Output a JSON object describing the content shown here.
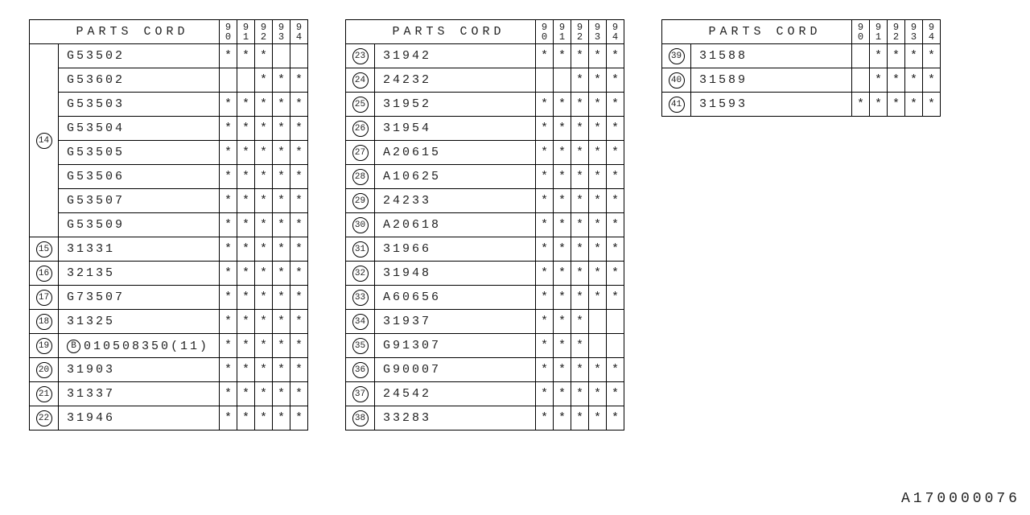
{
  "title": "PARTS CORD",
  "years": [
    "90",
    "91",
    "92",
    "93",
    "94"
  ],
  "mark_symbol": "*",
  "footer_code": "A170000076",
  "tables": [
    {
      "groups": [
        {
          "num": "14",
          "rows": [
            {
              "part": "G53502",
              "marks": [
                true,
                true,
                true,
                false,
                false
              ]
            },
            {
              "part": "G53602",
              "marks": [
                false,
                false,
                true,
                true,
                true
              ]
            },
            {
              "part": "G53503",
              "marks": [
                true,
                true,
                true,
                true,
                true
              ]
            },
            {
              "part": "G53504",
              "marks": [
                true,
                true,
                true,
                true,
                true
              ]
            },
            {
              "part": "G53505",
              "marks": [
                true,
                true,
                true,
                true,
                true
              ]
            },
            {
              "part": "G53506",
              "marks": [
                true,
                true,
                true,
                true,
                true
              ]
            },
            {
              "part": "G53507",
              "marks": [
                true,
                true,
                true,
                true,
                true
              ]
            },
            {
              "part": "G53509",
              "marks": [
                true,
                true,
                true,
                true,
                true
              ]
            }
          ]
        },
        {
          "num": "15",
          "rows": [
            {
              "part": "31331",
              "marks": [
                true,
                true,
                true,
                true,
                true
              ]
            }
          ]
        },
        {
          "num": "16",
          "rows": [
            {
              "part": "32135",
              "marks": [
                true,
                true,
                true,
                true,
                true
              ]
            }
          ]
        },
        {
          "num": "17",
          "rows": [
            {
              "part": "G73507",
              "marks": [
                true,
                true,
                true,
                true,
                true
              ]
            }
          ]
        },
        {
          "num": "18",
          "rows": [
            {
              "part": "31325",
              "marks": [
                true,
                true,
                true,
                true,
                true
              ]
            }
          ]
        },
        {
          "num": "19",
          "rows": [
            {
              "badge": "B",
              "part": "010508350(11)",
              "marks": [
                true,
                true,
                true,
                true,
                true
              ]
            }
          ]
        },
        {
          "num": "20",
          "rows": [
            {
              "part": "31903",
              "marks": [
                true,
                true,
                true,
                true,
                true
              ]
            }
          ]
        },
        {
          "num": "21",
          "rows": [
            {
              "part": "31337",
              "marks": [
                true,
                true,
                true,
                true,
                true
              ]
            }
          ]
        },
        {
          "num": "22",
          "rows": [
            {
              "part": "31946",
              "marks": [
                true,
                true,
                true,
                true,
                true
              ]
            }
          ]
        }
      ]
    },
    {
      "groups": [
        {
          "num": "23",
          "rows": [
            {
              "part": "31942",
              "marks": [
                true,
                true,
                true,
                true,
                true
              ]
            }
          ]
        },
        {
          "num": "24",
          "rows": [
            {
              "part": "24232",
              "marks": [
                false,
                false,
                true,
                true,
                true
              ]
            }
          ]
        },
        {
          "num": "25",
          "rows": [
            {
              "part": "31952",
              "marks": [
                true,
                true,
                true,
                true,
                true
              ]
            }
          ]
        },
        {
          "num": "26",
          "rows": [
            {
              "part": "31954",
              "marks": [
                true,
                true,
                true,
                true,
                true
              ]
            }
          ]
        },
        {
          "num": "27",
          "rows": [
            {
              "part": "A20615",
              "marks": [
                true,
                true,
                true,
                true,
                true
              ]
            }
          ]
        },
        {
          "num": "28",
          "rows": [
            {
              "part": "A10625",
              "marks": [
                true,
                true,
                true,
                true,
                true
              ]
            }
          ]
        },
        {
          "num": "29",
          "rows": [
            {
              "part": "24233",
              "marks": [
                true,
                true,
                true,
                true,
                true
              ]
            }
          ]
        },
        {
          "num": "30",
          "rows": [
            {
              "part": "A20618",
              "marks": [
                true,
                true,
                true,
                true,
                true
              ]
            }
          ]
        },
        {
          "num": "31",
          "rows": [
            {
              "part": "31966",
              "marks": [
                true,
                true,
                true,
                true,
                true
              ]
            }
          ]
        },
        {
          "num": "32",
          "rows": [
            {
              "part": "31948",
              "marks": [
                true,
                true,
                true,
                true,
                true
              ]
            }
          ]
        },
        {
          "num": "33",
          "rows": [
            {
              "part": "A60656",
              "marks": [
                true,
                true,
                true,
                true,
                true
              ]
            }
          ]
        },
        {
          "num": "34",
          "rows": [
            {
              "part": "31937",
              "marks": [
                true,
                true,
                true,
                false,
                false
              ]
            }
          ]
        },
        {
          "num": "35",
          "rows": [
            {
              "part": "G91307",
              "marks": [
                true,
                true,
                true,
                false,
                false
              ]
            }
          ]
        },
        {
          "num": "36",
          "rows": [
            {
              "part": "G90007",
              "marks": [
                true,
                true,
                true,
                true,
                true
              ]
            }
          ]
        },
        {
          "num": "37",
          "rows": [
            {
              "part": "24542",
              "marks": [
                true,
                true,
                true,
                true,
                true
              ]
            }
          ]
        },
        {
          "num": "38",
          "rows": [
            {
              "part": "33283",
              "marks": [
                true,
                true,
                true,
                true,
                true
              ]
            }
          ]
        }
      ]
    },
    {
      "groups": [
        {
          "num": "39",
          "rows": [
            {
              "part": "31588",
              "marks": [
                false,
                true,
                true,
                true,
                true
              ]
            }
          ]
        },
        {
          "num": "40",
          "rows": [
            {
              "part": "31589",
              "marks": [
                false,
                true,
                true,
                true,
                true
              ]
            }
          ]
        },
        {
          "num": "41",
          "rows": [
            {
              "part": "31593",
              "marks": [
                true,
                true,
                true,
                true,
                true
              ]
            }
          ]
        }
      ]
    }
  ]
}
